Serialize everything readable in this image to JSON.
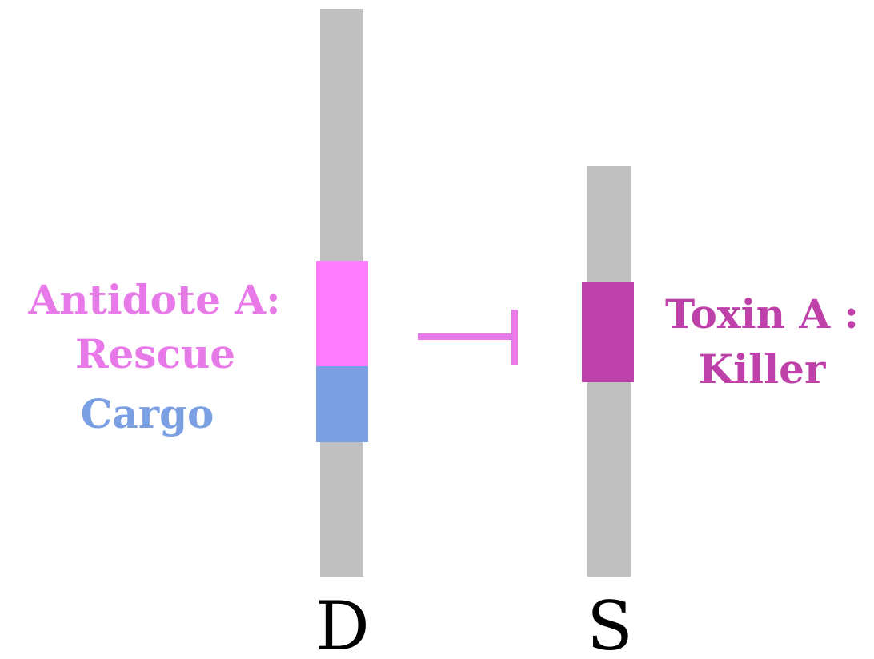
{
  "colors": {
    "chromosome": "#c0c0c0",
    "antidote": "#ff7bff",
    "antidote_text": "#e879e8",
    "cargo": "#7a9fe2",
    "toxin": "#be41aa",
    "inhibition": "#e879e8",
    "letter": "#000000"
  },
  "labels": {
    "antidote_line1": "Antidote A:",
    "antidote_line2": "Rescue",
    "cargo": "Cargo",
    "toxin_line1": "Toxin A :",
    "toxin_line2": "Killer",
    "chromosome_d": "D",
    "chromosome_s": "S"
  }
}
